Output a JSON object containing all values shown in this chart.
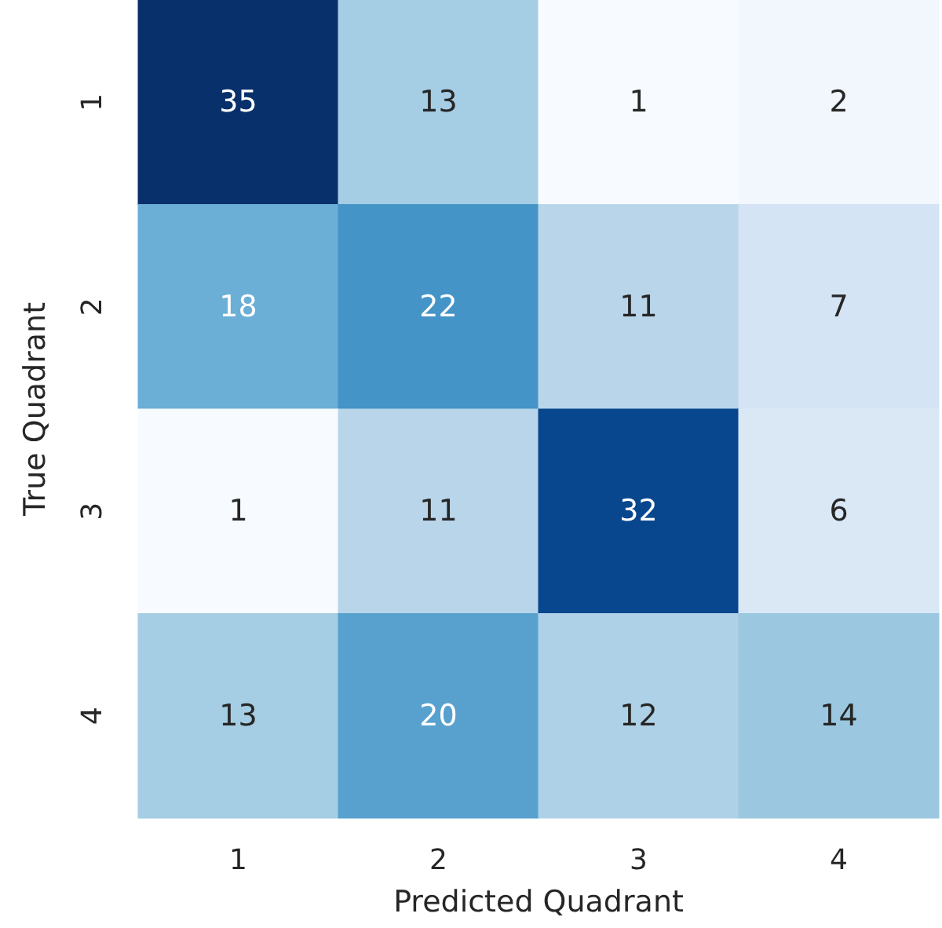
{
  "chart_data": {
    "type": "heatmap",
    "xlabel": "Predicted Quadrant",
    "ylabel": "True Quadrant",
    "categories": [
      "1",
      "2",
      "3",
      "4"
    ],
    "y_categories": [
      "1",
      "2",
      "3",
      "4"
    ],
    "cells": [
      [
        35,
        13,
        1,
        2
      ],
      [
        18,
        22,
        11,
        7
      ],
      [
        1,
        11,
        32,
        6
      ],
      [
        13,
        20,
        12,
        14
      ]
    ],
    "data_labels": true
  }
}
